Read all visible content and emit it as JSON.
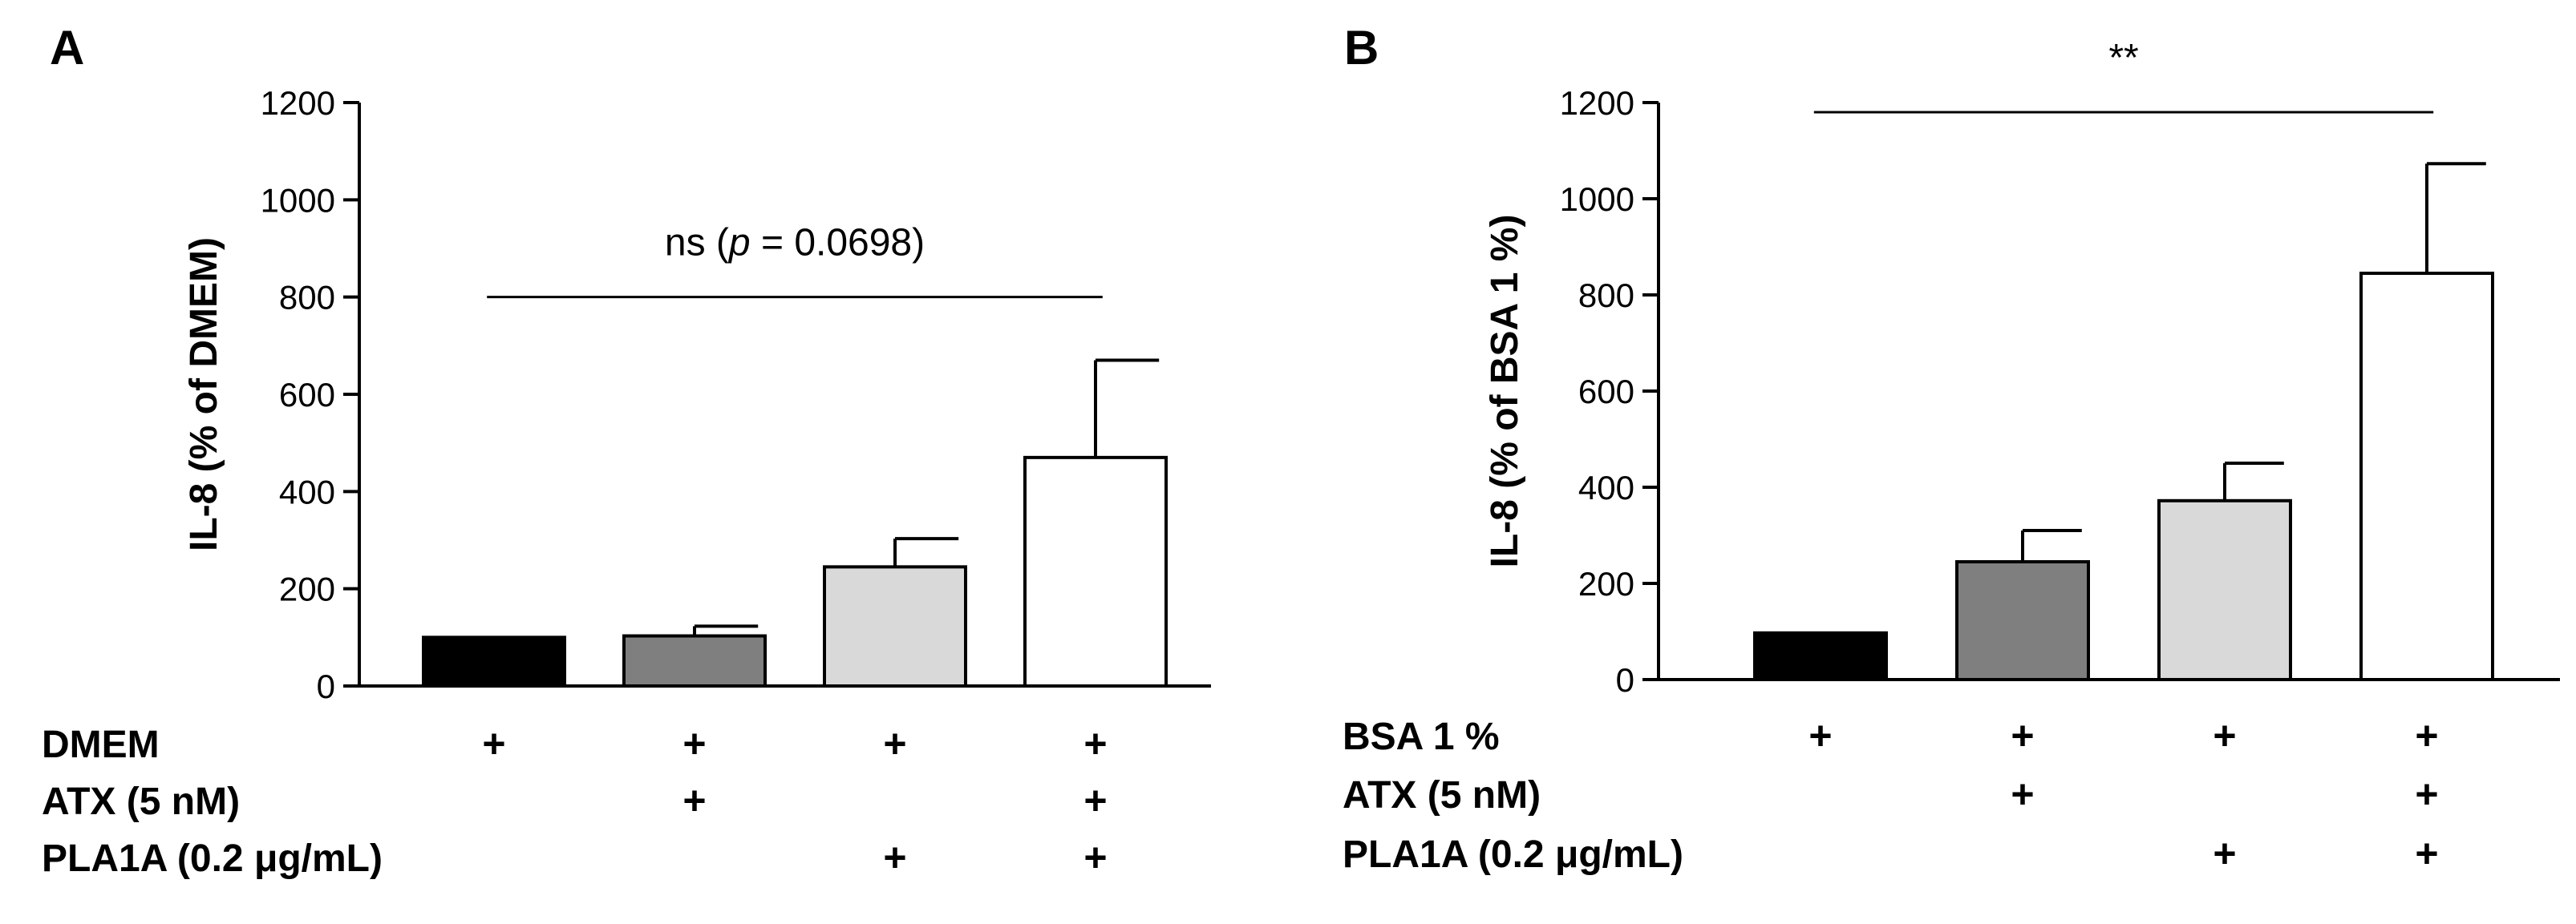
{
  "colors": {
    "bar_fills": [
      "#000000",
      "#7f7f7f",
      "#d9d9d9",
      "#ffffff"
    ],
    "bar_stroke": "#000000"
  },
  "chart_data": [
    {
      "type": "bar",
      "panel": "A",
      "ylabel": "IL-8 (% of DMEM)",
      "ylim": [
        0,
        1200
      ],
      "yticks": [
        0,
        200,
        400,
        600,
        800,
        1000,
        1200
      ],
      "categories": [
        "DMEM",
        "DMEM + ATX",
        "DMEM + PLA1A",
        "DMEM + ATX + PLA1A"
      ],
      "values": [
        100,
        103,
        245,
        470
      ],
      "errors": [
        0,
        20,
        58,
        200
      ],
      "significance": {
        "prefix": "ns (",
        "p_symbol": "p",
        "suffix": " = 0.0698)",
        "from": 0,
        "to": 3,
        "y": 800
      },
      "treatment_rows": [
        {
          "label": "DMEM",
          "marks": [
            "+",
            "+",
            "+",
            "+"
          ]
        },
        {
          "label": "ATX (5 nM)",
          "marks": [
            "",
            "+",
            "",
            "+"
          ]
        },
        {
          "label": "PLA1A (0.2 μg/mL)",
          "marks": [
            "",
            "",
            "+",
            "+"
          ]
        }
      ]
    },
    {
      "type": "bar",
      "panel": "B",
      "ylabel": "IL-8 (% of BSA 1 %)",
      "ylim": [
        0,
        1200
      ],
      "yticks": [
        0,
        200,
        400,
        600,
        800,
        1000,
        1200
      ],
      "categories": [
        "BSA 1 %",
        "BSA 1 % + ATX",
        "BSA 1 % + PLA1A",
        "BSA 1 % + ATX + PLA1A"
      ],
      "values": [
        97,
        245,
        372,
        845
      ],
      "errors": [
        0,
        65,
        78,
        228
      ],
      "significance": {
        "prefix": "**",
        "p_symbol": "",
        "suffix": "",
        "from": 0,
        "to": 3,
        "y": 1180
      },
      "treatment_rows": [
        {
          "label": "BSA 1 %",
          "marks": [
            "+",
            "+",
            "+",
            "+"
          ]
        },
        {
          "label": "ATX (5 nM)",
          "marks": [
            "",
            "+",
            "",
            "+"
          ]
        },
        {
          "label": "PLA1A (0.2 μg/mL)",
          "marks": [
            "",
            "",
            "+",
            "+"
          ]
        }
      ]
    }
  ]
}
